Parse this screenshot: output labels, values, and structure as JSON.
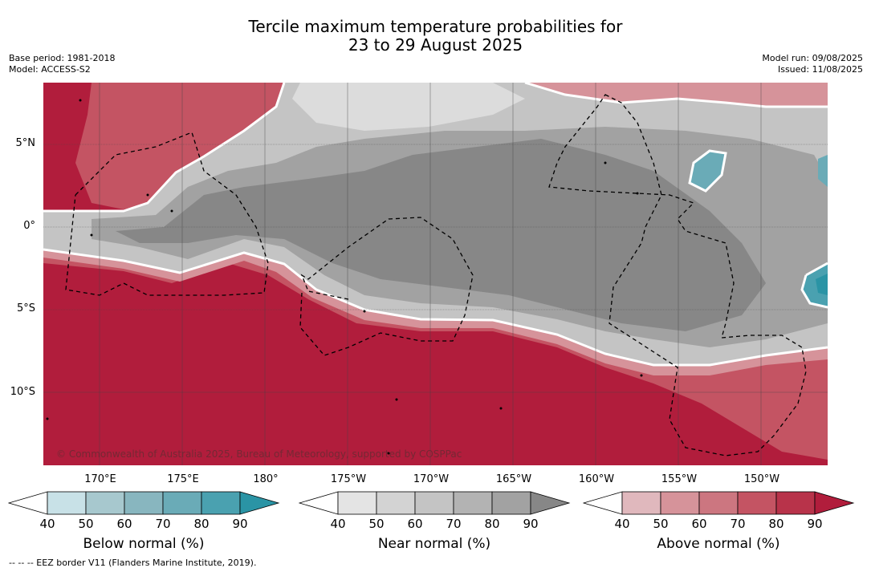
{
  "title": {
    "line1": "Tercile maximum temperature probabilities for",
    "line2": "23 to 29 August 2025"
  },
  "meta_left": {
    "base_period": "Base period: 1981-2018",
    "model": "Model: ACCESS-S2"
  },
  "meta_right": {
    "model_run": "Model run: 09/08/2025",
    "issued": "Issued: 11/08/2025"
  },
  "lat_labels": [
    "5°N",
    "0°",
    "5°S",
    "10°S"
  ],
  "lon_labels": [
    "170°E",
    "175°E",
    "180°",
    "175°W",
    "170°W",
    "165°W",
    "160°W",
    "155°W",
    "150°W"
  ],
  "copyright": "© Commonwealth of Australia 2025, Bureau of Meteorology, supported by COSPPac",
  "colorbars": [
    {
      "title": "Below normal (%)",
      "ticks": [
        "40",
        "50",
        "60",
        "70",
        "80",
        "90"
      ],
      "colors": [
        "#ffffff",
        "#c8e1e7",
        "#a7c8ce",
        "#88b6bf",
        "#6aabb7",
        "#4aa1b0",
        "#2a94a5"
      ]
    },
    {
      "title": "Near normal (%)",
      "ticks": [
        "40",
        "50",
        "60",
        "70",
        "80",
        "90"
      ],
      "colors": [
        "#ffffff",
        "#e4e4e4",
        "#d3d3d3",
        "#c4c4c4",
        "#b3b3b3",
        "#a2a2a2",
        "#878787"
      ]
    },
    {
      "title": "Above normal (%)",
      "ticks": [
        "40",
        "50",
        "60",
        "70",
        "80",
        "90"
      ],
      "colors": [
        "#ffffff",
        "#e0b8bd",
        "#d6939a",
        "#cc7680",
        "#c45463",
        "#b8334a",
        "#b11d3c"
      ]
    }
  ],
  "footnote": "--  --  -- EEZ border V11 (Flanders Marine Institute, 2019).",
  "map_colors": {
    "above_strong": "#b11d3c",
    "above_mid": "#c45463",
    "above_light": "#d6939a",
    "near_dark": "#878787",
    "near_mid": "#a2a2a2",
    "near_light": "#c4c4c4",
    "near_pale": "#dcdcdc",
    "below_mid": "#6aabb7",
    "below_strong": "#2a94a5"
  }
}
